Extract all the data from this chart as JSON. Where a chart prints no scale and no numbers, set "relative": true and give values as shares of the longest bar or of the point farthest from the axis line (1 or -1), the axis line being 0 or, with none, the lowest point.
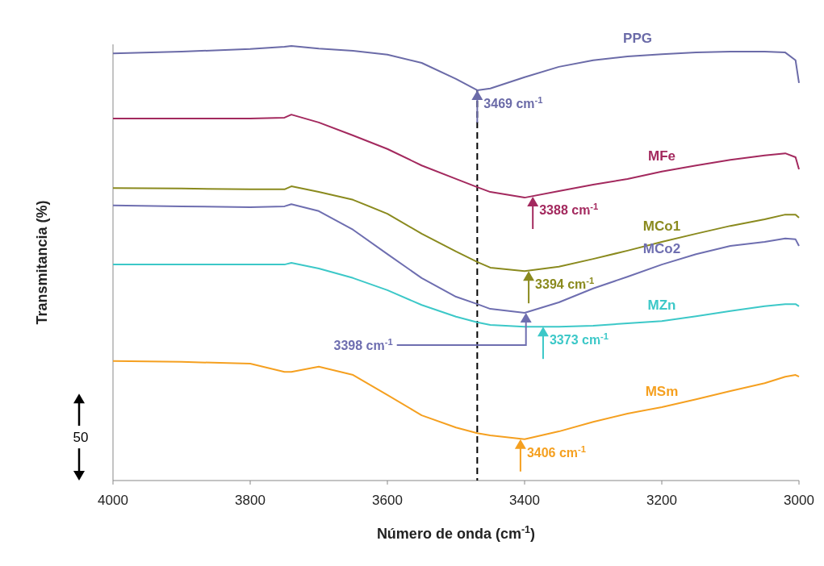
{
  "chart_data": {
    "type": "line",
    "relative": true,
    "xlabel": "Número de onda (cm$^{-1}$)",
    "ylabel": "Transmitancia (%)",
    "x": [
      4000,
      3900,
      3800,
      3750,
      3740,
      3700,
      3650,
      3600,
      3550,
      3500,
      3469,
      3450,
      3400,
      3350,
      3300,
      3250,
      3200,
      3150,
      3100,
      3050,
      3020,
      3005,
      3000
    ],
    "xlim": [
      4000,
      3000
    ],
    "xticks": [
      4000,
      3800,
      3600,
      3400,
      3200,
      3000
    ],
    "series": [
      {
        "name": "PPG",
        "color": "#6b6ba8",
        "values": [
          0.983,
          0.987,
          0.993,
          0.998,
          1,
          0.994,
          0.989,
          0.98,
          0.961,
          0.924,
          0.898,
          0.902,
          0.928,
          0.952,
          0.967,
          0.976,
          0.981,
          0.985,
          0.987,
          0.987,
          0.985,
          0.967,
          0.915
        ]
      },
      {
        "name": "MFe",
        "color": "#a3295e",
        "values": [
          0.833,
          0.833,
          0.833,
          0.835,
          0.842,
          0.824,
          0.794,
          0.763,
          0.725,
          0.694,
          0.675,
          0.664,
          0.651,
          0.666,
          0.681,
          0.694,
          0.711,
          0.725,
          0.738,
          0.748,
          0.753,
          0.744,
          0.716
        ]
      },
      {
        "name": "MCo1",
        "color": "#8a8a1e",
        "values": [
          0.673,
          0.672,
          0.67,
          0.67,
          0.677,
          0.664,
          0.646,
          0.614,
          0.568,
          0.527,
          0.503,
          0.49,
          0.482,
          0.492,
          0.51,
          0.529,
          0.549,
          0.568,
          0.586,
          0.601,
          0.612,
          0.612,
          0.605
        ]
      },
      {
        "name": "MCo2",
        "color": "#6e6eb0",
        "values": [
          0.633,
          0.631,
          0.629,
          0.631,
          0.636,
          0.62,
          0.577,
          0.521,
          0.466,
          0.423,
          0.406,
          0.395,
          0.386,
          0.41,
          0.442,
          0.469,
          0.497,
          0.521,
          0.54,
          0.549,
          0.557,
          0.555,
          0.54
        ]
      },
      {
        "name": "MZn",
        "color": "#3cc8c8",
        "values": [
          0.497,
          0.497,
          0.497,
          0.497,
          0.501,
          0.488,
          0.466,
          0.438,
          0.404,
          0.377,
          0.364,
          0.358,
          0.354,
          0.354,
          0.356,
          0.362,
          0.367,
          0.378,
          0.39,
          0.401,
          0.406,
          0.406,
          0.401
        ]
      },
      {
        "name": "MSm",
        "color": "#f5a020",
        "values": [
          0.275,
          0.273,
          0.269,
          0.25,
          0.25,
          0.262,
          0.243,
          0.197,
          0.15,
          0.122,
          0.109,
          0.104,
          0.095,
          0.113,
          0.135,
          0.154,
          0.169,
          0.187,
          0.206,
          0.224,
          0.239,
          0.243,
          0.239
        ]
      }
    ],
    "annotations": [
      {
        "text": "3469 cm$^{-1}$",
        "x": 3469,
        "y": 0.898
      },
      {
        "text": "3388 cm$^{-1}$",
        "x": 3388,
        "y": 0.653
      },
      {
        "text": "3394 cm$^{-1}$",
        "x": 3394,
        "y": 0.482
      },
      {
        "text": "3398 cm$^{-1}$",
        "x": 3398,
        "y": 0.386
      },
      {
        "text": "3373 cm$^{-1}$",
        "x": 3373,
        "y": 0.354
      },
      {
        "text": "3406 cm$^{-1}$",
        "x": 3406,
        "y": 0.095
      },
      "50"
    ],
    "ref_lines": [
      {
        "axis": "x",
        "value": 3469,
        "color": "#000000",
        "line_style": "dashed"
      }
    ],
    "line_style": "solid"
  }
}
